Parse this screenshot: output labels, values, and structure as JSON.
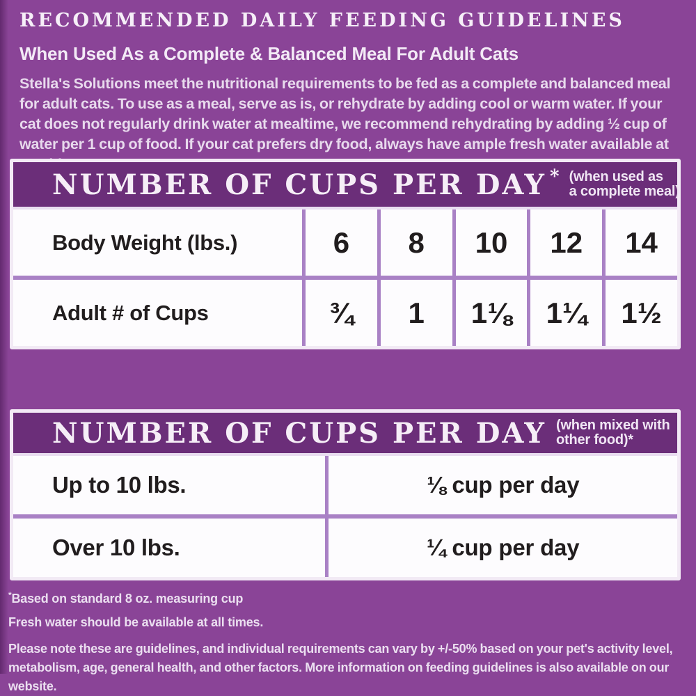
{
  "colors": {
    "background": "#8A4497",
    "header_band": "#6B2E79",
    "frame_border": "#F2EAF5",
    "cell_divider": "#A981C5",
    "cell_background": "#FDFCFE",
    "ink": "#211D1E",
    "light_text": "#F6EFF8"
  },
  "header": {
    "title": "RECOMMENDED DAILY FEEDING GUIDELINES",
    "subtitle": "When Used As a Complete & Balanced Meal For Adult Cats",
    "intro": "Stella's Solutions meet the nutritional requirements to be fed as a complete and balanced meal for adult cats. To use as a meal, serve as is, or rehydrate by adding cool or warm water. If your cat does not regularly drink water at mealtime, we recommend rehydrating by adding ½ cup of water per 1 cup of food. If your cat prefers dry food, always have ample fresh water available at mealtime."
  },
  "table_complete_meal": {
    "title": "NUMBER OF CUPS PER DAY",
    "title_mark": "*",
    "note_line1": "(when used as",
    "note_line2": "a complete meal)",
    "rows": [
      {
        "label": "Body Weight (lbs.)",
        "values": [
          "6",
          "8",
          "10",
          "12",
          "14"
        ]
      },
      {
        "label": "Adult # of Cups",
        "values": [
          "¾",
          "1",
          "1⅛",
          "1¼",
          "1½"
        ]
      }
    ]
  },
  "table_mixed_food": {
    "title": "NUMBER OF CUPS PER DAY",
    "note_line1": "(when mixed with",
    "note_line2": "other food)*",
    "rows": [
      {
        "label": "Up to 10 lbs.",
        "value": "⅛ cup per day"
      },
      {
        "label": "Over 10 lbs.",
        "value": "¼ cup per day"
      }
    ]
  },
  "footnotes": {
    "mark": "*",
    "measuring_cup": "Based on standard 8 oz. measuring cup",
    "fresh_water": "Fresh water should be available at all times.",
    "disclaimer": "Please note these are guidelines, and individual requirements can vary by +/-50% based on your pet's activity level, metabolism, age, general health, and other factors. More information on feeding guidelines is also available on our website."
  }
}
